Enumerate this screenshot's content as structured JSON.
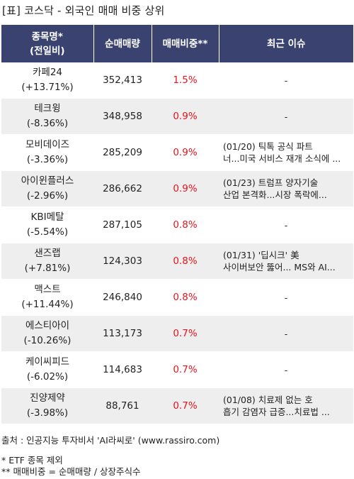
{
  "title": "[표] 코스닥 - 외국인 매매 비중 상위",
  "headers": {
    "name_line1": "종목명*",
    "name_line2": "(전일비)",
    "volume": "순매매량",
    "ratio": "매매비중**",
    "issue": "최근 이슈"
  },
  "rows": [
    {
      "name": "카페24",
      "change": "(+13.71%)",
      "volume": "352,413",
      "ratio": "1.5%",
      "issue": "-"
    },
    {
      "name": "테크윙",
      "change": "(-8.36%)",
      "volume": "348,958",
      "ratio": "0.9%",
      "issue": "-"
    },
    {
      "name": "모비데이즈",
      "change": "(-3.36%)",
      "volume": "285,209",
      "ratio": "0.9%",
      "issue": "(01/20) 틱톡 공식 파트\n너...미국 서비스 재개 소식에 ..."
    },
    {
      "name": "아이윈플러스",
      "change": "(-2.96%)",
      "volume": "286,662",
      "ratio": "0.9%",
      "issue": "(01/23) 트럼프 양자기술\n 산업 본격화...시장 폭락에..."
    },
    {
      "name": "KBI메탈",
      "change": "(-5.54%)",
      "volume": "287,105",
      "ratio": "0.8%",
      "issue": "-"
    },
    {
      "name": "샌즈랩",
      "change": "(+7.81%)",
      "volume": "124,303",
      "ratio": "0.8%",
      "issue": "(01/31) '딥시크' 美\n사이버보안 뚫어... MS와 AI..."
    },
    {
      "name": "맥스트",
      "change": "(+11.44%)",
      "volume": "246,840",
      "ratio": "0.8%",
      "issue": "-"
    },
    {
      "name": "에스티아이",
      "change": "(-10.26%)",
      "volume": "113,173",
      "ratio": "0.7%",
      "issue": "-"
    },
    {
      "name": "케이씨피드",
      "change": "(-6.02%)",
      "volume": "114,683",
      "ratio": "0.7%",
      "issue": "-"
    },
    {
      "name": "진양제약",
      "change": "(-3.98%)",
      "volume": "88,761",
      "ratio": "0.7%",
      "issue": "(01/08) 치료제 없는 호\n흡기 감염자 급증...치료법 ..."
    }
  ],
  "footer": {
    "source": "출처 : 인공지능 투자비서 'AI라씨로' (www.rassiro.com)",
    "note1": "* ETF 종목 제외",
    "note2": "** 매매비중 = 순매매량 / 상장주식수"
  },
  "colors": {
    "header_bg": "#3a4270",
    "ratio_text": "#e8131c",
    "stripe": "#eeeeee"
  }
}
